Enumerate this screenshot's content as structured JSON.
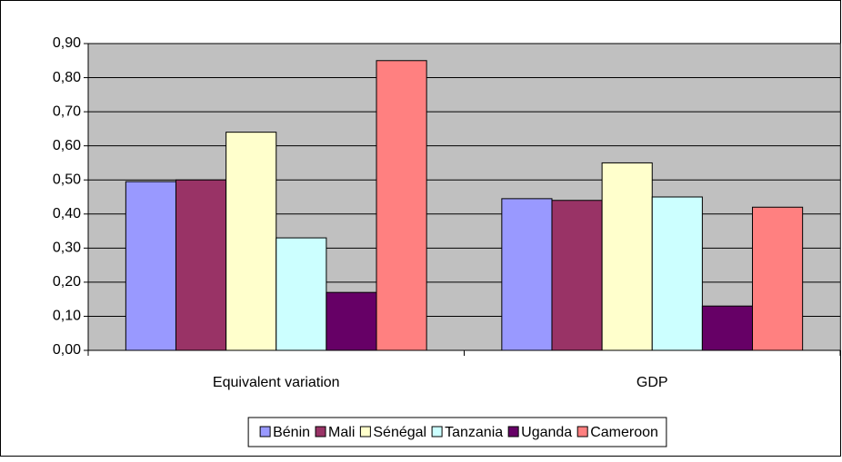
{
  "chart_data": {
    "type": "bar",
    "categories": [
      "Equivalent variation",
      "GDP"
    ],
    "series": [
      {
        "name": "Bénin",
        "color": "#9999ff",
        "values": [
          0.495,
          0.445
        ]
      },
      {
        "name": "Mali",
        "color": "#993366",
        "values": [
          0.5,
          0.44
        ]
      },
      {
        "name": "Sénégal",
        "color": "#ffffcc",
        "values": [
          0.64,
          0.55
        ]
      },
      {
        "name": "Tanzania",
        "color": "#ccffff",
        "values": [
          0.33,
          0.45
        ]
      },
      {
        "name": "Uganda",
        "color": "#660066",
        "values": [
          0.17,
          0.13
        ]
      },
      {
        "name": "Cameroon",
        "color": "#ff8080",
        "values": [
          0.85,
          0.42
        ]
      }
    ],
    "ylim": [
      0,
      0.9
    ],
    "yticks": [
      {
        "value": 0,
        "label": "0,00"
      },
      {
        "value": 0.1,
        "label": "0,10"
      },
      {
        "value": 0.2,
        "label": "0,20"
      },
      {
        "value": 0.3,
        "label": "0,30"
      },
      {
        "value": 0.4,
        "label": "0,40"
      },
      {
        "value": 0.5,
        "label": "0,50"
      },
      {
        "value": 0.6,
        "label": "0,60"
      },
      {
        "value": 0.7,
        "label": "0,70"
      },
      {
        "value": 0.8,
        "label": "0,80"
      },
      {
        "value": 0.9,
        "label": "0,90"
      }
    ],
    "grid": true,
    "plot_background": "#c0c0c0",
    "legend": "bottom"
  }
}
